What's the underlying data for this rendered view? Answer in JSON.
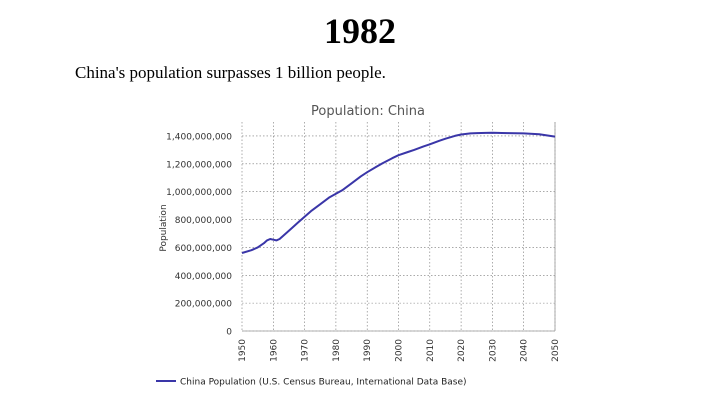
{
  "slide": {
    "title": "1982",
    "caption": "China's population surpasses 1 billion people."
  },
  "chart_data": {
    "type": "line",
    "title": "Population: China",
    "xlabel": "",
    "ylabel": "Population",
    "xlim": [
      1950,
      2050
    ],
    "ylim": [
      0,
      1500000000
    ],
    "x_ticks": [
      "1950",
      "1960",
      "1970",
      "1980",
      "1990",
      "2000",
      "2010",
      "2020",
      "2030",
      "2040",
      "2050"
    ],
    "y_ticks": [
      "0",
      "200,000,000",
      "400,000,000",
      "600,000,000",
      "800,000,000",
      "1,000,000,000",
      "1,200,000,000",
      "1,400,000,000"
    ],
    "grid": true,
    "legend_position": "bottom",
    "series": [
      {
        "name": "China Population (U.S. Census Bureau, International Data Base)",
        "color": "#3a36a8",
        "x": [
          1950,
          1953,
          1955,
          1957,
          1958,
          1959,
          1960,
          1961,
          1962,
          1964,
          1966,
          1968,
          1970,
          1972,
          1975,
          1978,
          1980,
          1982,
          1985,
          1988,
          1990,
          1993,
          1995,
          1998,
          2000,
          2003,
          2005,
          2008,
          2010,
          2013,
          2015,
          2018,
          2020,
          2023,
          2025,
          2028,
          2030,
          2033,
          2035,
          2040,
          2045,
          2050
        ],
        "values": [
          560000000,
          580000000,
          600000000,
          630000000,
          650000000,
          660000000,
          655000000,
          650000000,
          660000000,
          700000000,
          740000000,
          780000000,
          820000000,
          860000000,
          910000000,
          960000000,
          985000000,
          1010000000,
          1060000000,
          1110000000,
          1140000000,
          1180000000,
          1205000000,
          1240000000,
          1262000000,
          1285000000,
          1300000000,
          1325000000,
          1340000000,
          1365000000,
          1380000000,
          1400000000,
          1410000000,
          1418000000,
          1420000000,
          1422000000,
          1423000000,
          1421000000,
          1420000000,
          1418000000,
          1412000000,
          1395000000
        ]
      }
    ]
  }
}
